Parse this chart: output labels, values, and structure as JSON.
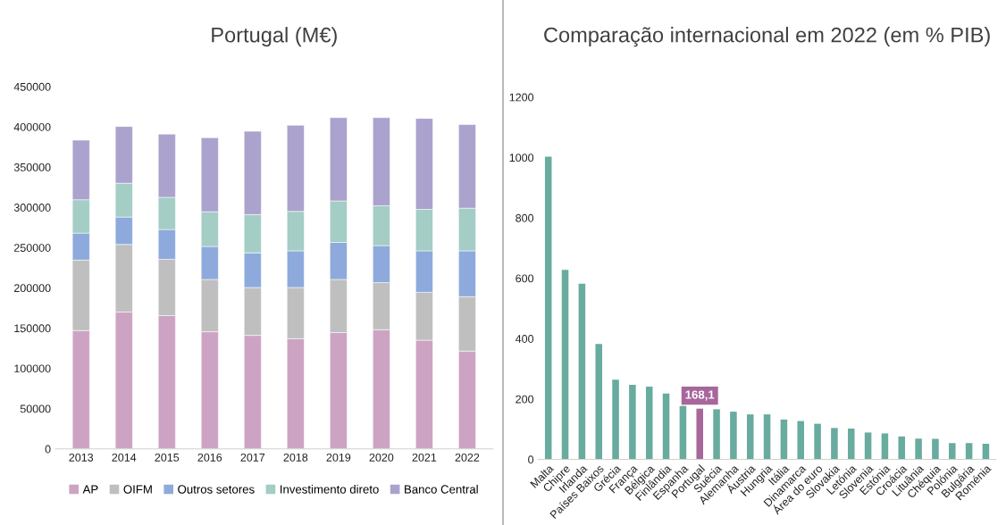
{
  "chart_data": [
    {
      "type": "bar",
      "title": "Portugal (M€)",
      "stacked": true,
      "legend": "bottom",
      "grid": false,
      "categories": [
        "2013",
        "2014",
        "2015",
        "2016",
        "2017",
        "2018",
        "2019",
        "2020",
        "2021",
        "2022"
      ],
      "ylim": [
        0,
        450000
      ],
      "yticks": [
        0,
        50000,
        100000,
        150000,
        200000,
        250000,
        300000,
        350000,
        400000,
        450000
      ],
      "series": [
        {
          "name": "AP",
          "color": "#cda3c4",
          "values": [
            147000,
            170000,
            165500,
            145500,
            141000,
            137000,
            144500,
            148000,
            135000,
            121500
          ]
        },
        {
          "name": "OIFM",
          "color": "#bfbfbf",
          "values": [
            87500,
            84000,
            70000,
            65000,
            59500,
            63500,
            66000,
            58500,
            59500,
            67500
          ]
        },
        {
          "name": "Outros setores",
          "color": "#8eaadc",
          "values": [
            33500,
            34000,
            37000,
            41000,
            43000,
            45500,
            46000,
            46000,
            51500,
            57000
          ]
        },
        {
          "name": "Investimento direto",
          "color": "#a3cdc5",
          "values": [
            41500,
            42000,
            40000,
            43000,
            47500,
            49000,
            51500,
            49500,
            51500,
            53000
          ]
        },
        {
          "name": "Banco Central",
          "color": "#aba2cd",
          "values": [
            74000,
            70500,
            78500,
            92000,
            103500,
            107000,
            103500,
            109500,
            113000,
            104000
          ]
        }
      ]
    },
    {
      "type": "bar",
      "title": "Comparação internacional em 2022 (em % PIB)",
      "grid": false,
      "legend": false,
      "categories": [
        "Malta",
        "Chipre",
        "Irlanda",
        "Países Baixos",
        "Grécia",
        "França",
        "Bélgica",
        "Finlândia",
        "Espanha",
        "Portugal",
        "Suécia",
        "Alemanha",
        "Áustria",
        "Hungria",
        "Itália",
        "Dinamarca",
        "Área do euro",
        "Slovakia",
        "Letónia",
        "Slovenia",
        "Estónia",
        "Croácia",
        "Lituânia",
        "Chéquia",
        "Polónia",
        "Bulgária",
        "Roménia"
      ],
      "ylim": [
        0,
        1200
      ],
      "yticks": [
        0,
        200,
        400,
        600,
        800,
        1000,
        1200
      ],
      "values": [
        1003,
        628,
        582,
        382,
        264,
        247,
        241,
        218,
        177,
        168.1,
        166,
        158,
        149,
        149,
        132,
        127,
        118,
        104,
        102,
        89,
        86,
        76,
        69,
        68,
        54,
        54,
        52
      ],
      "colors": [
        "#68ab9f",
        "#68ab9f",
        "#68ab9f",
        "#68ab9f",
        "#68ab9f",
        "#68ab9f",
        "#68ab9f",
        "#68ab9f",
        "#68ab9f",
        "#a8669b",
        "#68ab9f",
        "#68ab9f",
        "#68ab9f",
        "#68ab9f",
        "#68ab9f",
        "#68ab9f",
        "#68ab9f",
        "#68ab9f",
        "#68ab9f",
        "#68ab9f",
        "#68ab9f",
        "#68ab9f",
        "#68ab9f",
        "#68ab9f",
        "#68ab9f",
        "#68ab9f",
        "#68ab9f"
      ],
      "value_labels": [
        null,
        null,
        null,
        null,
        null,
        null,
        null,
        null,
        null,
        "168,1",
        null,
        null,
        null,
        null,
        null,
        null,
        null,
        null,
        null,
        null,
        null,
        null,
        null,
        null,
        null,
        null,
        null
      ]
    }
  ]
}
